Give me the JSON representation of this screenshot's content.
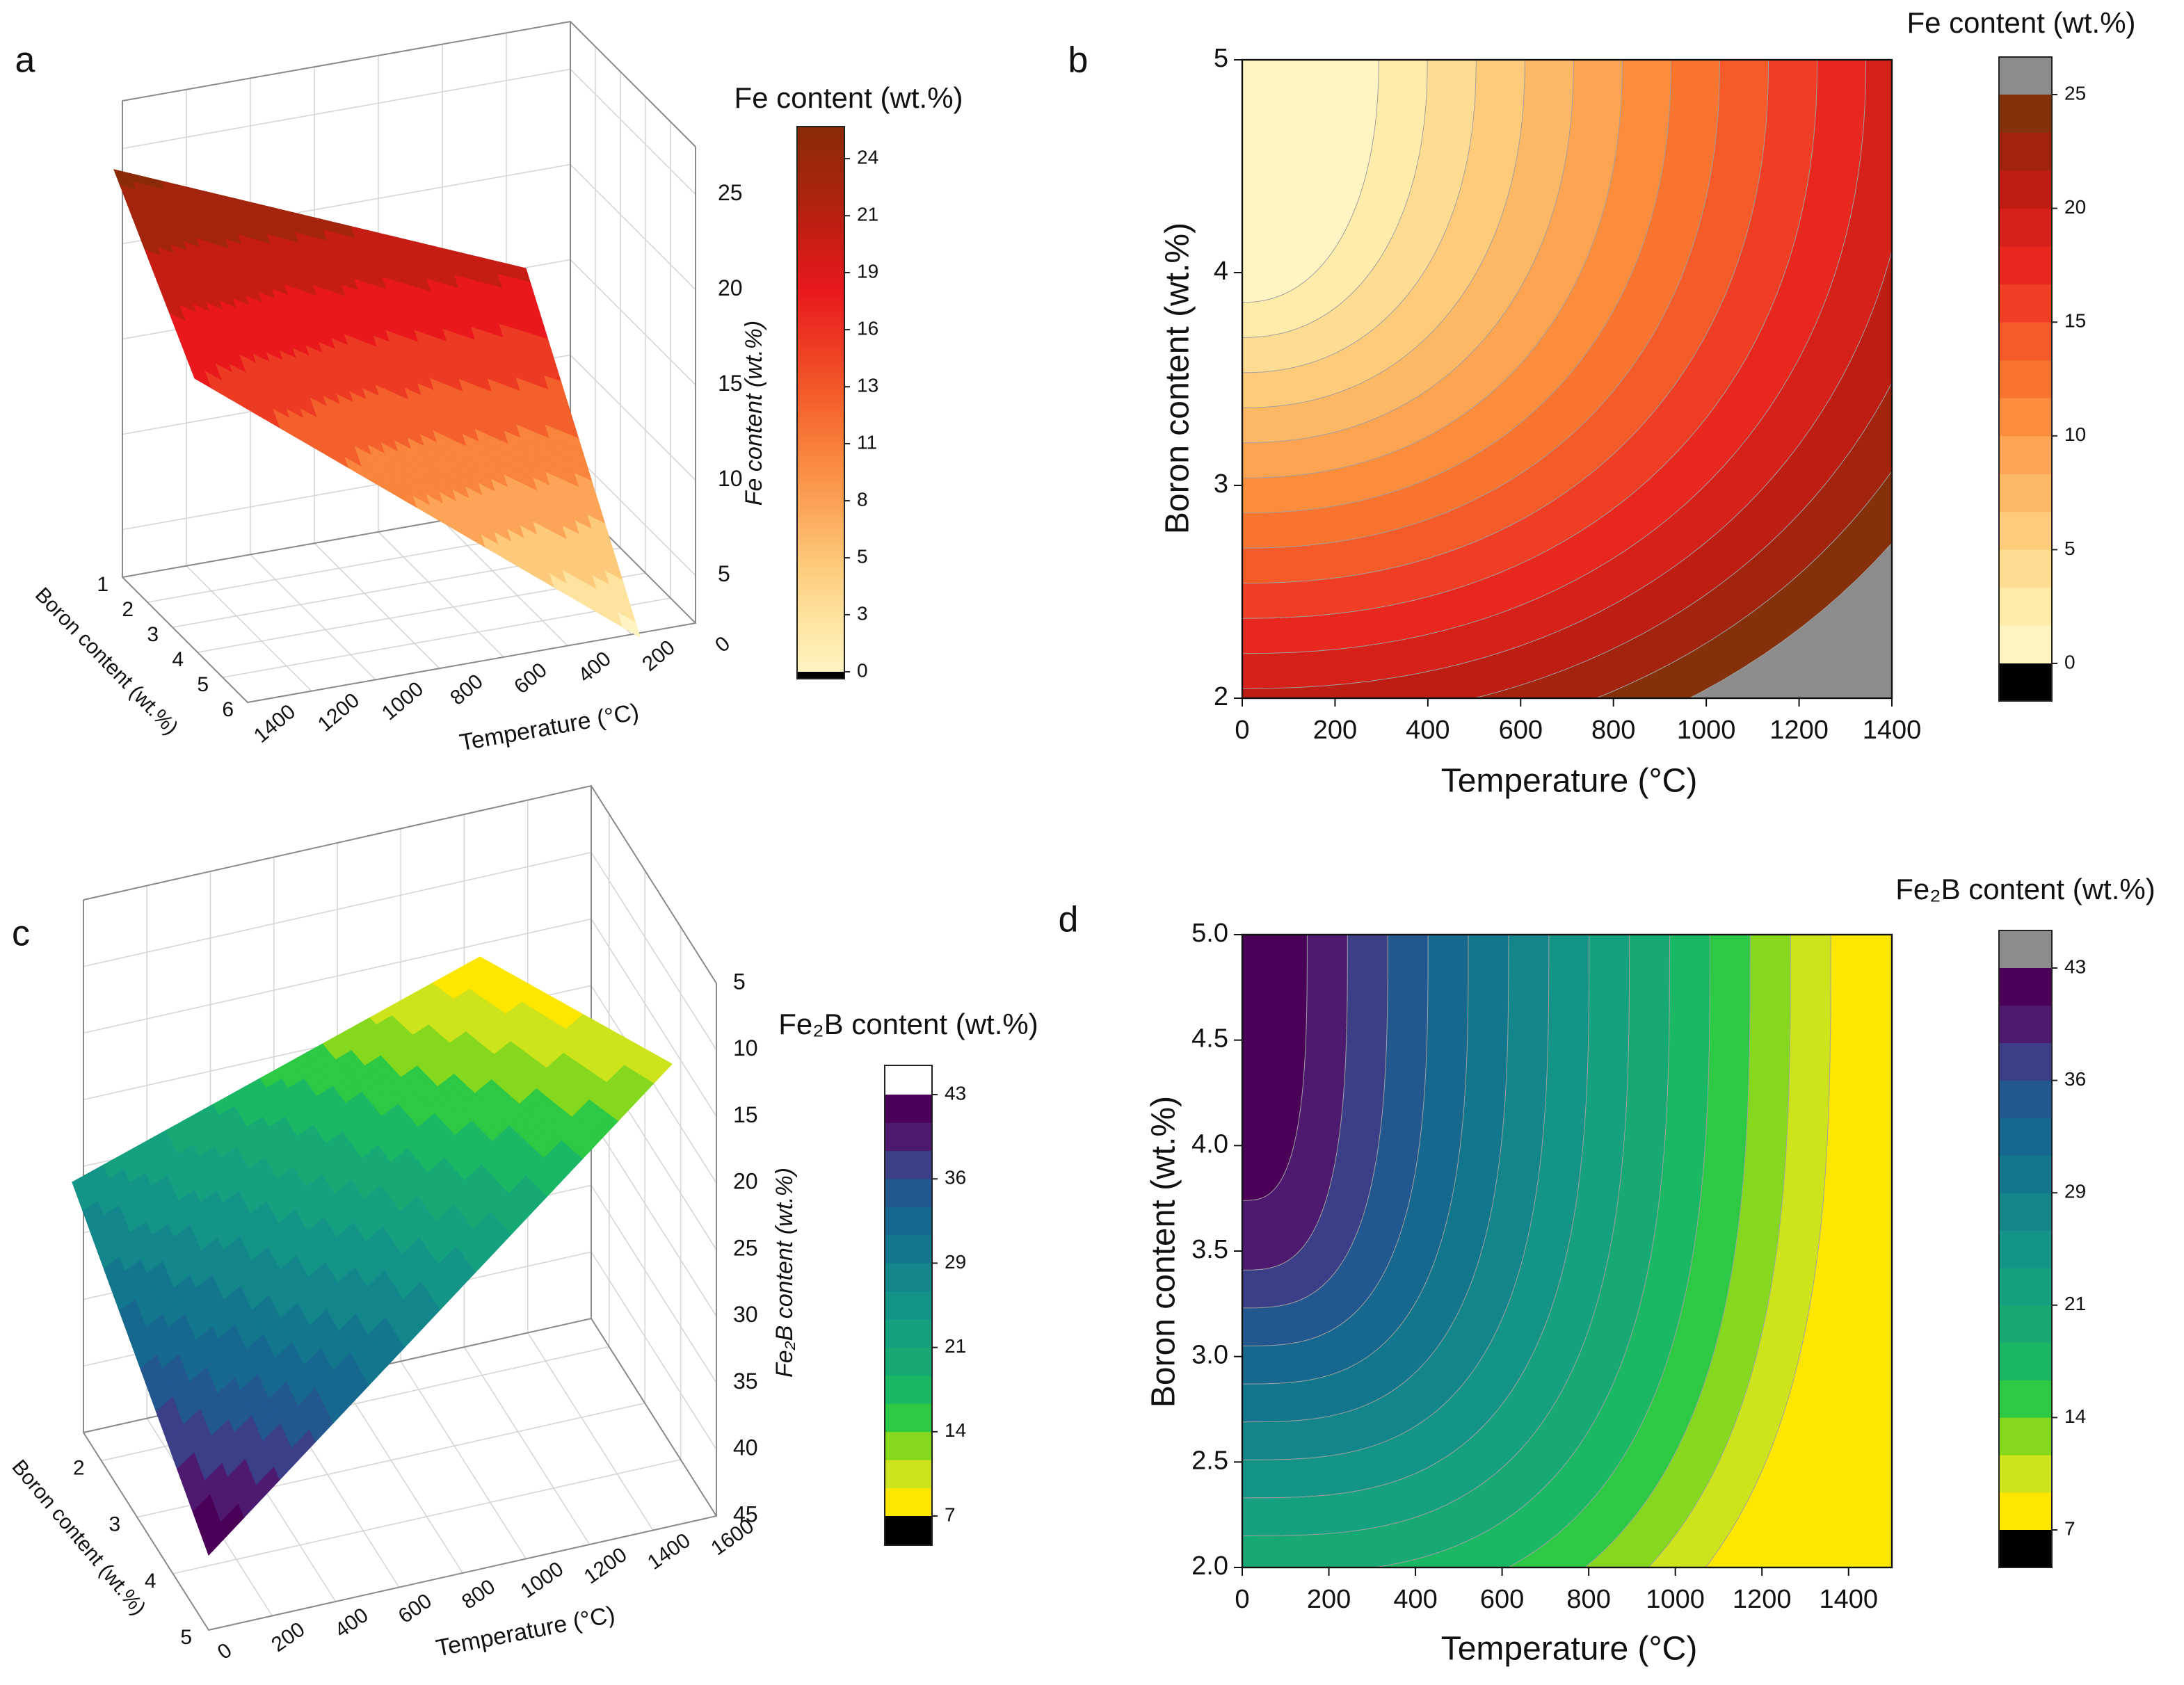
{
  "chart_data": [
    {
      "type": "surface3d",
      "panel_label": "a",
      "x_label": "Temperature (°C)",
      "y_label": "Boron content (wt.%)",
      "z_label": "Fe content (wt.%)",
      "xlim": [
        0,
        1400
      ],
      "xticks": [
        0,
        200,
        400,
        600,
        800,
        1000,
        1200,
        1400
      ],
      "ylim": [
        1,
        6
      ],
      "yticks": [
        1,
        2,
        3,
        4,
        5,
        6
      ],
      "zlim": [
        2.5,
        27.5
      ],
      "zticks": [
        5,
        10,
        15,
        20,
        25
      ],
      "colorbar": {
        "title": "Fe content (wt.%)",
        "clim": [
          0,
          25.5
        ],
        "colors": [
          "#fff4c2",
          "#fee39e",
          "#fdc97a",
          "#fca557",
          "#f9843c",
          "#f4602b",
          "#ed3b23",
          "#e8181d",
          "#c51d14",
          "#a3250d",
          "#8a2a08"
        ],
        "under_color": "#000000",
        "ticks": [
          0,
          {
            "value": 2.67,
            "label": "3"
          },
          {
            "value": 5.33,
            "label": "5"
          },
          8,
          {
            "value": 10.67,
            "label": "11"
          },
          {
            "value": 13.33,
            "label": "13"
          },
          16,
          {
            "value": 18.67,
            "label": "19"
          },
          {
            "value": 21.33,
            "label": "21"
          },
          24
        ]
      }
    },
    {
      "type": "contour",
      "panel_label": "b",
      "x_label": "Temperature (°C)",
      "y_label": "Boron content (wt.%)",
      "xlim": [
        0,
        1400
      ],
      "xticks": [
        0,
        200,
        400,
        600,
        800,
        1000,
        1200,
        1400
      ],
      "ylim": [
        2,
        5
      ],
      "yticks": [
        2,
        3,
        4,
        5
      ],
      "colorbar": {
        "title": "Fe content (wt.%)",
        "levels": [
          0,
          1.67,
          3.33,
          5,
          6.67,
          8.33,
          10,
          11.67,
          13.33,
          15,
          16.67,
          18.33,
          20,
          21.67,
          23.33,
          25
        ],
        "colors": [
          "#fff5c2",
          "#ffebaa",
          "#fedd92",
          "#fecb7b",
          "#fdb865",
          "#fca451",
          "#fb8d3d",
          "#f8742f",
          "#f45b29",
          "#f03e24",
          "#e8281f",
          "#d6201a",
          "#bd1d13",
          "#a2230e",
          "#83300b"
        ],
        "under_color": "#000000",
        "over_color": "#8c8c8c",
        "ticks": [
          0,
          5,
          10,
          15,
          20,
          25
        ]
      }
    },
    {
      "type": "surface3d",
      "panel_label": "c",
      "x_label": "Temperature (°C)",
      "y_label": "Boron content (wt.%)",
      "z_label": "Fe₂B content (wt.%)",
      "xlim": [
        0,
        1600
      ],
      "xticks": [
        0,
        200,
        400,
        600,
        800,
        1000,
        1200,
        1400,
        1600
      ],
      "ylim": [
        1.5,
        5
      ],
      "yticks": [
        2,
        3,
        4,
        5
      ],
      "zlim": [
        5,
        45
      ],
      "zticks": [
        5,
        10,
        15,
        20,
        25,
        30,
        35,
        40,
        45
      ],
      "z_inverted": true,
      "colorbar": {
        "title": "Fe₂B content (wt.%)",
        "levels": [
          7,
          9.4,
          11.8,
          14.2,
          16.6,
          19,
          21.4,
          23.8,
          26.2,
          28.6,
          31,
          33.4,
          35.8,
          38.2,
          40.6,
          43
        ],
        "colors": [
          "#fde600",
          "#cde31c",
          "#86d81e",
          "#2dc945",
          "#1ab864",
          "#17a974",
          "#15a07f",
          "#149487",
          "#13868b",
          "#12778d",
          "#17688f",
          "#225790",
          "#3a3f88",
          "#4e1a6f",
          "#4b0057"
        ],
        "under_color": "#000000",
        "over_color": "#ffffff",
        "ticks": [
          7,
          {
            "value": 14.2,
            "label": "14"
          },
          {
            "value": 21.4,
            "label": "21"
          },
          {
            "value": 28.6,
            "label": "29"
          },
          {
            "value": 35.8,
            "label": "36"
          },
          43
        ]
      }
    },
    {
      "type": "contour",
      "panel_label": "d",
      "x_label": "Temperature (°C)",
      "y_label": "Boron content (wt.%)",
      "xlim": [
        0,
        1500
      ],
      "xticks": [
        0,
        200,
        400,
        600,
        800,
        1000,
        1200,
        1400
      ],
      "ylim": [
        2,
        5
      ],
      "yticks": [
        {
          "value": 2,
          "label": "2.0"
        },
        2.5,
        {
          "value": 3,
          "label": "3.0"
        },
        3.5,
        {
          "value": 4,
          "label": "4.0"
        },
        4.5,
        {
          "value": 5,
          "label": "5.0"
        }
      ],
      "colorbar": {
        "title": "Fe₂B content (wt.%)",
        "levels": [
          7,
          9.4,
          11.8,
          14.2,
          16.6,
          19,
          21.4,
          23.8,
          26.2,
          28.6,
          31,
          33.4,
          35.8,
          38.2,
          40.6,
          43
        ],
        "colors": [
          "#fde600",
          "#cde31c",
          "#86d81e",
          "#2dc945",
          "#1ab864",
          "#17a974",
          "#15a07f",
          "#149487",
          "#13868b",
          "#12778d",
          "#17688f",
          "#225790",
          "#3a3f88",
          "#4e1a6f",
          "#4b0057"
        ],
        "under_color": "#000000",
        "over_color": "#8c8c8c",
        "ticks": [
          7,
          {
            "value": 14.2,
            "label": "14"
          },
          {
            "value": 21.4,
            "label": "21"
          },
          {
            "value": 28.6,
            "label": "29"
          },
          {
            "value": 35.8,
            "label": "36"
          },
          43
        ]
      }
    }
  ]
}
